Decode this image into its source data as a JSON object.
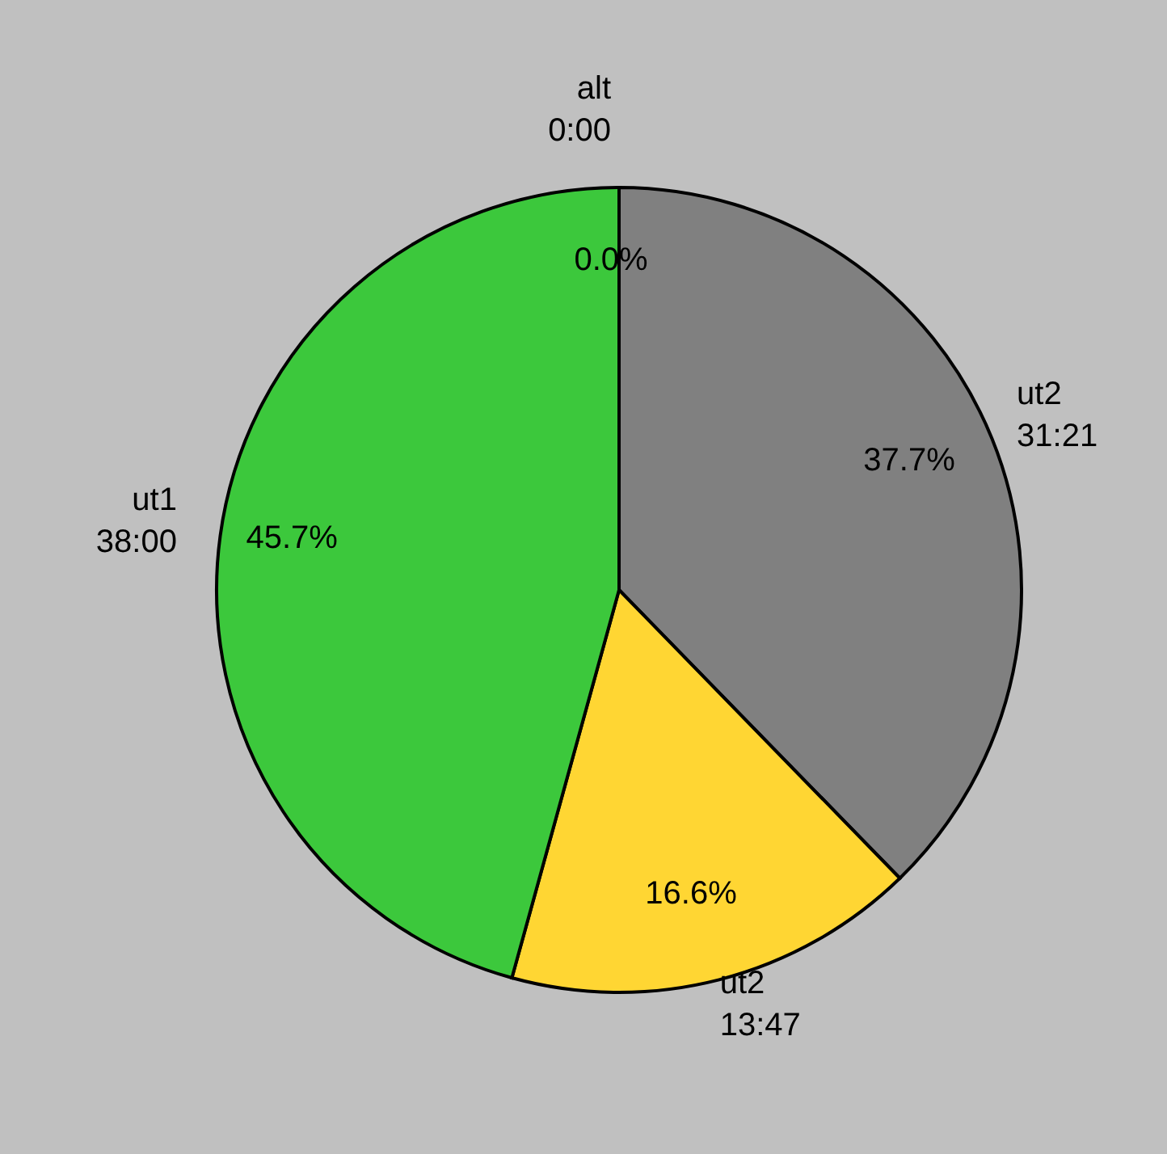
{
  "chart_data": {
    "type": "pie",
    "categories": [
      "alt",
      "ut2",
      "ut2",
      "ut1"
    ],
    "values": [
      0.0,
      31.35,
      13.783,
      38.0
    ],
    "value_labels": [
      "0:00",
      "31:21",
      "13:47",
      "38:00"
    ],
    "annotations": [
      "0.0%",
      "37.7%",
      "16.6%",
      "45.7%"
    ],
    "colors": [
      "#3cc83c",
      "#808080",
      "#ffd633",
      "#3cc83c"
    ]
  }
}
